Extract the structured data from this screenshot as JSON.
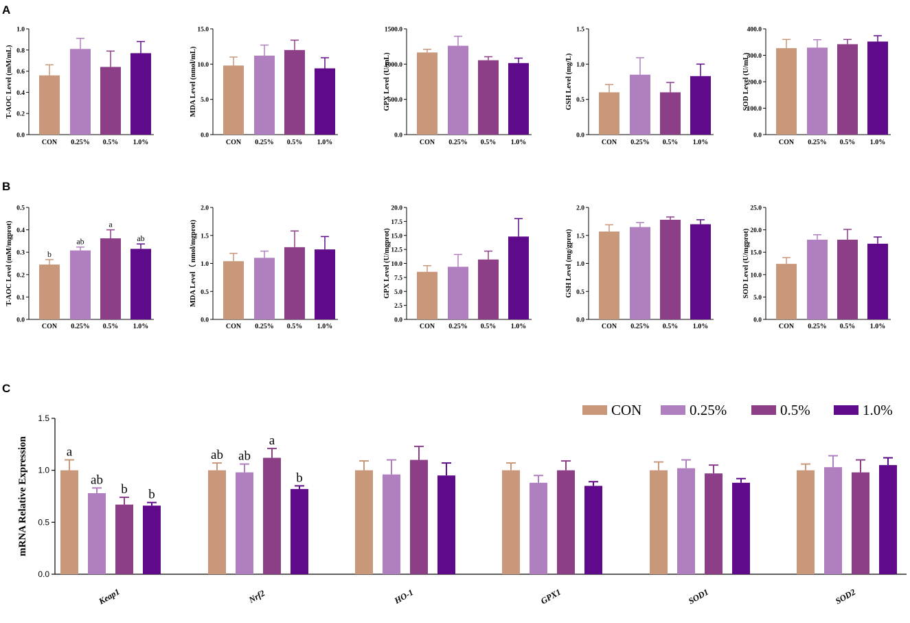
{
  "panels": {
    "A": "A",
    "B": "B",
    "C": "C"
  },
  "colors": {
    "CON": "#c9977a",
    "0.25%": "#b07fbf",
    "0.5%": "#8c3f87",
    "1.0%": "#5e0a8a"
  },
  "chart_data": [
    {
      "type": "bar",
      "panel": "A",
      "categories": [
        "CON",
        "0.25%",
        "0.5%",
        "1.0%"
      ],
      "values": [
        0.56,
        0.81,
        0.64,
        0.77
      ],
      "errors": [
        0.1,
        0.1,
        0.15,
        0.11
      ],
      "ylabel": "T-AOC Level (mM/mL)",
      "ylim": [
        0,
        1.0
      ],
      "yticks": [
        "0.0",
        "0.2",
        "0.4",
        "0.6",
        "0.8",
        "1.0"
      ],
      "labels": []
    },
    {
      "type": "bar",
      "panel": "A",
      "categories": [
        "CON",
        "0.25%",
        "0.5%",
        "1.0%"
      ],
      "values": [
        9.8,
        11.2,
        12.0,
        9.4
      ],
      "errors": [
        1.2,
        1.5,
        1.4,
        1.5
      ],
      "ylabel": "MDA Level (nmol/mL)",
      "ylim": [
        0,
        15
      ],
      "yticks": [
        "0.0",
        "5.0",
        "10.0",
        "15.0"
      ],
      "labels": []
    },
    {
      "type": "bar",
      "panel": "A",
      "categories": [
        "CON",
        "0.25%",
        "0.5%",
        "1.0%"
      ],
      "values": [
        1165,
        1260,
        1055,
        1015
      ],
      "errors": [
        45,
        135,
        50,
        70
      ],
      "ylabel": "GPX Level (U/mL)",
      "ylim": [
        0,
        1500
      ],
      "yticks": [
        "0.0",
        "500.0",
        "1000.0",
        "1500.0"
      ],
      "labels": []
    },
    {
      "type": "bar",
      "panel": "A",
      "categories": [
        "CON",
        "0.25%",
        "0.5%",
        "1.0%"
      ],
      "values": [
        0.6,
        0.85,
        0.6,
        0.83
      ],
      "errors": [
        0.11,
        0.24,
        0.14,
        0.17
      ],
      "ylabel": "GSH Level (mg/L)",
      "ylim": [
        0,
        1.5
      ],
      "yticks": [
        "0.0",
        "0.5",
        "1.0",
        "1.5"
      ],
      "labels": []
    },
    {
      "type": "bar",
      "panel": "A",
      "categories": [
        "CON",
        "0.25%",
        "0.5%",
        "1.0%"
      ],
      "values": [
        327,
        329,
        342,
        352
      ],
      "errors": [
        33,
        30,
        18,
        22
      ],
      "ylabel": "SOD Level (U/mL)",
      "ylim": [
        0,
        400
      ],
      "yticks": [
        "0.0",
        "100.0",
        "200.0",
        "300.0",
        "400.0"
      ],
      "labels": []
    },
    {
      "type": "bar",
      "panel": "B",
      "categories": [
        "CON",
        "0.25%",
        "0.5%",
        "1.0%"
      ],
      "values": [
        0.245,
        0.308,
        0.362,
        0.315
      ],
      "errors": [
        0.022,
        0.015,
        0.038,
        0.022
      ],
      "ylabel": "T-AOC Level (mM/mgprot)",
      "ylim": [
        0,
        0.5
      ],
      "yticks": [
        "0.0",
        "0.1",
        "0.2",
        "0.3",
        "0.4",
        "0.5"
      ],
      "labels": [
        "b",
        "ab",
        "a",
        "ab"
      ]
    },
    {
      "type": "bar",
      "panel": "B",
      "categories": [
        "CON",
        "0.25%",
        "0.5%",
        "1.0%"
      ],
      "values": [
        1.04,
        1.1,
        1.29,
        1.25
      ],
      "errors": [
        0.14,
        0.12,
        0.29,
        0.23
      ],
      "ylabel": "MDA Level（ nmol/mgprot)",
      "ylim": [
        0,
        2.0
      ],
      "yticks": [
        "0.0",
        "0.5",
        "1.0",
        "1.5",
        "2.0"
      ],
      "labels": []
    },
    {
      "type": "bar",
      "panel": "B",
      "categories": [
        "CON",
        "0.25%",
        "0.5%",
        "1.0%"
      ],
      "values": [
        8.5,
        9.4,
        10.7,
        14.8
      ],
      "errors": [
        1.1,
        2.2,
        1.5,
        3.2
      ],
      "ylabel": "GPX Level (U/mgprot)",
      "ylim": [
        0,
        20
      ],
      "yticks": [
        "0.0",
        "2.5",
        "5.0",
        "7.5",
        "10.0",
        "12.5",
        "15.0",
        "17.5",
        "20.0"
      ],
      "labels": []
    },
    {
      "type": "bar",
      "panel": "B",
      "categories": [
        "CON",
        "0.25%",
        "0.5%",
        "1.0%"
      ],
      "values": [
        1.57,
        1.65,
        1.78,
        1.7
      ],
      "errors": [
        0.12,
        0.08,
        0.05,
        0.08
      ],
      "ylabel": "GSH Level (mg/gprot)",
      "ylim": [
        0,
        2.0
      ],
      "yticks": [
        "0.0",
        "0.5",
        "1.0",
        "1.5",
        "2.0"
      ],
      "labels": []
    },
    {
      "type": "bar",
      "panel": "B",
      "categories": [
        "CON",
        "0.25%",
        "0.5%",
        "1.0%"
      ],
      "values": [
        12.4,
        17.8,
        17.8,
        16.9
      ],
      "errors": [
        1.4,
        1.1,
        2.3,
        1.5
      ],
      "ylabel": "SOD Level (U/mgprot)",
      "ylim": [
        0,
        25
      ],
      "yticks": [
        "0.0",
        "5.0",
        "10.0",
        "15.0",
        "20.0",
        "25.0"
      ],
      "labels": []
    },
    {
      "type": "bar",
      "panel": "C",
      "ylabel": "mRNA Relative Expression",
      "ylim": [
        0,
        1.5
      ],
      "yticks": [
        "0.0",
        "0.5",
        "1.0",
        "1.5"
      ],
      "categories": [
        "Keap1",
        "Nrf2",
        "HO-1",
        "GPX1",
        "SOD1",
        "SOD2"
      ],
      "legend": [
        "CON",
        "0.25%",
        "0.5%",
        "1.0%"
      ],
      "series": [
        {
          "name": "CON",
          "values": [
            1.0,
            1.0,
            1.0,
            1.0,
            1.0,
            1.0
          ],
          "errors": [
            0.1,
            0.07,
            0.09,
            0.07,
            0.08,
            0.06
          ]
        },
        {
          "name": "0.25%",
          "values": [
            0.78,
            0.98,
            0.96,
            0.88,
            1.02,
            1.03
          ],
          "errors": [
            0.05,
            0.08,
            0.14,
            0.07,
            0.08,
            0.11
          ]
        },
        {
          "name": "0.5%",
          "values": [
            0.67,
            1.12,
            1.1,
            1.0,
            0.97,
            0.98
          ],
          "errors": [
            0.07,
            0.09,
            0.13,
            0.09,
            0.08,
            0.12
          ]
        },
        {
          "name": "1.0%",
          "values": [
            0.66,
            0.82,
            0.95,
            0.85,
            0.88,
            1.05
          ],
          "errors": [
            0.03,
            0.03,
            0.12,
            0.04,
            0.04,
            0.07
          ]
        }
      ],
      "labels": [
        [
          "a",
          "ab",
          "b",
          "b"
        ],
        [
          "ab",
          "ab",
          "a",
          "b"
        ],
        [
          "",
          "",
          "",
          ""
        ],
        [
          "",
          "",
          "",
          ""
        ],
        [
          "",
          "",
          "",
          ""
        ],
        [
          "",
          "",
          "",
          ""
        ]
      ]
    }
  ]
}
